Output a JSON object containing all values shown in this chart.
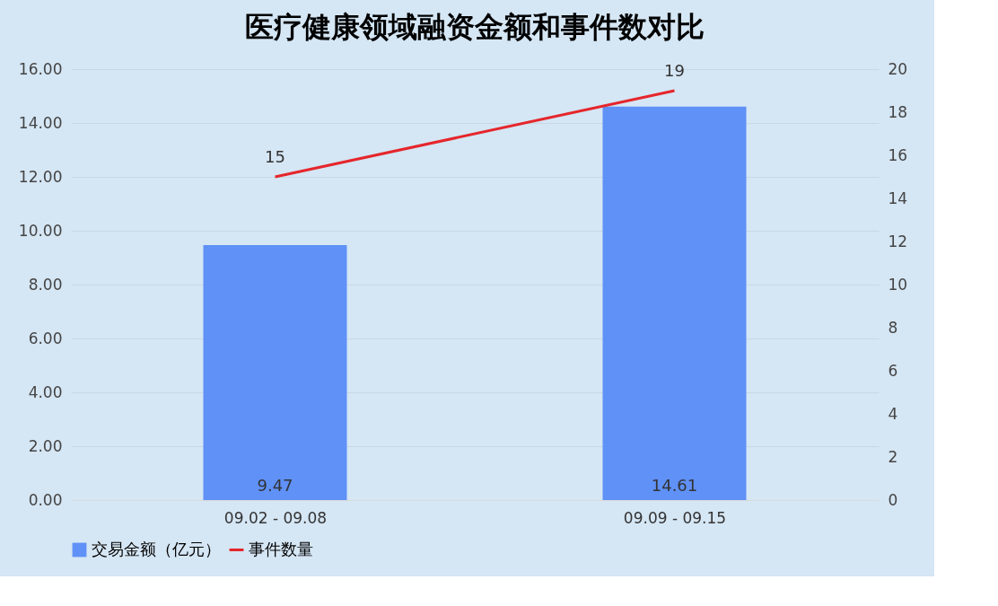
{
  "chart_data": {
    "type": "bar",
    "title": "医疗健康领域融资金额和事件数对比",
    "categories": [
      "09.02 - 09.08",
      "09.09 - 09.15"
    ],
    "series": [
      {
        "name": "交易金额（亿元）",
        "color": "#5f91f7",
        "values": [
          9.47,
          14.61
        ]
      },
      {
        "name": "事件数量",
        "type": "line",
        "axis": "y2",
        "color": "#e5262b",
        "values": [
          15,
          19
        ]
      }
    ],
    "ylim": [
      0,
      16
    ],
    "yticks": [
      {
        "value": 0,
        "label": "0.00"
      },
      {
        "value": 2,
        "label": "2.00"
      },
      {
        "value": 4,
        "label": "4.00"
      },
      {
        "value": 6,
        "label": "6.00"
      },
      {
        "value": 8,
        "label": "8.00"
      },
      {
        "value": 10,
        "label": "10.00"
      },
      {
        "value": 12,
        "label": "12.00"
      },
      {
        "value": 14,
        "label": "14.00"
      },
      {
        "value": 16,
        "label": "16.00"
      }
    ],
    "y2lim": [
      0,
      20
    ],
    "y2ticks": [
      0,
      2,
      4,
      6,
      8,
      10,
      12,
      14,
      16,
      18,
      20
    ],
    "grid": "y",
    "legend": "bottom",
    "data_labels": true,
    "marker": "none"
  }
}
